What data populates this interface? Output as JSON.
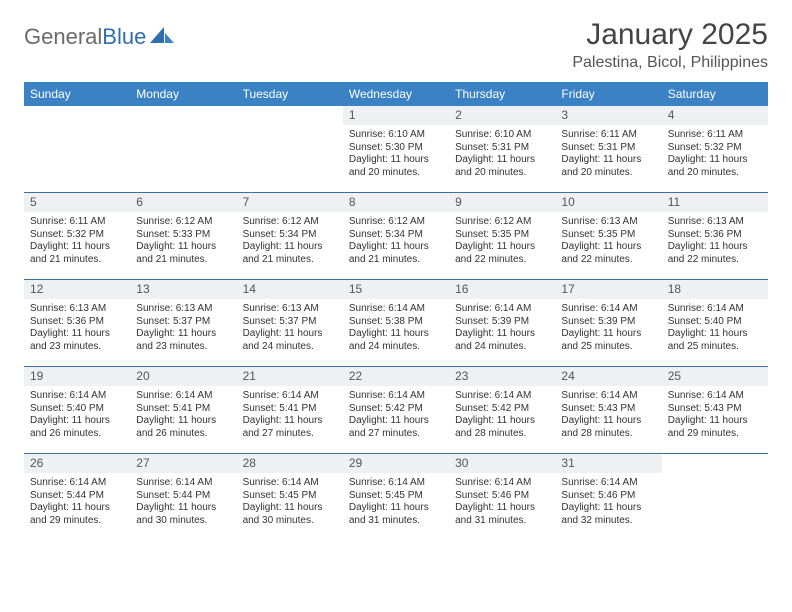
{
  "logo": {
    "text1": "General",
    "text2": "Blue"
  },
  "title": "January 2025",
  "location": "Palestina, Bicol, Philippines",
  "headers": [
    "Sunday",
    "Monday",
    "Tuesday",
    "Wednesday",
    "Thursday",
    "Friday",
    "Saturday"
  ],
  "colors": {
    "header_bg": "#3b82c4",
    "header_text": "#ffffff",
    "daynum_bg": "#eef0f2",
    "week_border": "#3b6fa0",
    "text": "#333333",
    "logo_gray": "#6a6a6a",
    "logo_blue": "#2f6fae"
  },
  "weeks": [
    [
      {
        "n": "",
        "sr": "",
        "ss": "",
        "dl1": "",
        "dl2": ""
      },
      {
        "n": "",
        "sr": "",
        "ss": "",
        "dl1": "",
        "dl2": ""
      },
      {
        "n": "",
        "sr": "",
        "ss": "",
        "dl1": "",
        "dl2": ""
      },
      {
        "n": "1",
        "sr": "Sunrise: 6:10 AM",
        "ss": "Sunset: 5:30 PM",
        "dl1": "Daylight: 11 hours",
        "dl2": "and 20 minutes."
      },
      {
        "n": "2",
        "sr": "Sunrise: 6:10 AM",
        "ss": "Sunset: 5:31 PM",
        "dl1": "Daylight: 11 hours",
        "dl2": "and 20 minutes."
      },
      {
        "n": "3",
        "sr": "Sunrise: 6:11 AM",
        "ss": "Sunset: 5:31 PM",
        "dl1": "Daylight: 11 hours",
        "dl2": "and 20 minutes."
      },
      {
        "n": "4",
        "sr": "Sunrise: 6:11 AM",
        "ss": "Sunset: 5:32 PM",
        "dl1": "Daylight: 11 hours",
        "dl2": "and 20 minutes."
      }
    ],
    [
      {
        "n": "5",
        "sr": "Sunrise: 6:11 AM",
        "ss": "Sunset: 5:32 PM",
        "dl1": "Daylight: 11 hours",
        "dl2": "and 21 minutes."
      },
      {
        "n": "6",
        "sr": "Sunrise: 6:12 AM",
        "ss": "Sunset: 5:33 PM",
        "dl1": "Daylight: 11 hours",
        "dl2": "and 21 minutes."
      },
      {
        "n": "7",
        "sr": "Sunrise: 6:12 AM",
        "ss": "Sunset: 5:34 PM",
        "dl1": "Daylight: 11 hours",
        "dl2": "and 21 minutes."
      },
      {
        "n": "8",
        "sr": "Sunrise: 6:12 AM",
        "ss": "Sunset: 5:34 PM",
        "dl1": "Daylight: 11 hours",
        "dl2": "and 21 minutes."
      },
      {
        "n": "9",
        "sr": "Sunrise: 6:12 AM",
        "ss": "Sunset: 5:35 PM",
        "dl1": "Daylight: 11 hours",
        "dl2": "and 22 minutes."
      },
      {
        "n": "10",
        "sr": "Sunrise: 6:13 AM",
        "ss": "Sunset: 5:35 PM",
        "dl1": "Daylight: 11 hours",
        "dl2": "and 22 minutes."
      },
      {
        "n": "11",
        "sr": "Sunrise: 6:13 AM",
        "ss": "Sunset: 5:36 PM",
        "dl1": "Daylight: 11 hours",
        "dl2": "and 22 minutes."
      }
    ],
    [
      {
        "n": "12",
        "sr": "Sunrise: 6:13 AM",
        "ss": "Sunset: 5:36 PM",
        "dl1": "Daylight: 11 hours",
        "dl2": "and 23 minutes."
      },
      {
        "n": "13",
        "sr": "Sunrise: 6:13 AM",
        "ss": "Sunset: 5:37 PM",
        "dl1": "Daylight: 11 hours",
        "dl2": "and 23 minutes."
      },
      {
        "n": "14",
        "sr": "Sunrise: 6:13 AM",
        "ss": "Sunset: 5:37 PM",
        "dl1": "Daylight: 11 hours",
        "dl2": "and 24 minutes."
      },
      {
        "n": "15",
        "sr": "Sunrise: 6:14 AM",
        "ss": "Sunset: 5:38 PM",
        "dl1": "Daylight: 11 hours",
        "dl2": "and 24 minutes."
      },
      {
        "n": "16",
        "sr": "Sunrise: 6:14 AM",
        "ss": "Sunset: 5:39 PM",
        "dl1": "Daylight: 11 hours",
        "dl2": "and 24 minutes."
      },
      {
        "n": "17",
        "sr": "Sunrise: 6:14 AM",
        "ss": "Sunset: 5:39 PM",
        "dl1": "Daylight: 11 hours",
        "dl2": "and 25 minutes."
      },
      {
        "n": "18",
        "sr": "Sunrise: 6:14 AM",
        "ss": "Sunset: 5:40 PM",
        "dl1": "Daylight: 11 hours",
        "dl2": "and 25 minutes."
      }
    ],
    [
      {
        "n": "19",
        "sr": "Sunrise: 6:14 AM",
        "ss": "Sunset: 5:40 PM",
        "dl1": "Daylight: 11 hours",
        "dl2": "and 26 minutes."
      },
      {
        "n": "20",
        "sr": "Sunrise: 6:14 AM",
        "ss": "Sunset: 5:41 PM",
        "dl1": "Daylight: 11 hours",
        "dl2": "and 26 minutes."
      },
      {
        "n": "21",
        "sr": "Sunrise: 6:14 AM",
        "ss": "Sunset: 5:41 PM",
        "dl1": "Daylight: 11 hours",
        "dl2": "and 27 minutes."
      },
      {
        "n": "22",
        "sr": "Sunrise: 6:14 AM",
        "ss": "Sunset: 5:42 PM",
        "dl1": "Daylight: 11 hours",
        "dl2": "and 27 minutes."
      },
      {
        "n": "23",
        "sr": "Sunrise: 6:14 AM",
        "ss": "Sunset: 5:42 PM",
        "dl1": "Daylight: 11 hours",
        "dl2": "and 28 minutes."
      },
      {
        "n": "24",
        "sr": "Sunrise: 6:14 AM",
        "ss": "Sunset: 5:43 PM",
        "dl1": "Daylight: 11 hours",
        "dl2": "and 28 minutes."
      },
      {
        "n": "25",
        "sr": "Sunrise: 6:14 AM",
        "ss": "Sunset: 5:43 PM",
        "dl1": "Daylight: 11 hours",
        "dl2": "and 29 minutes."
      }
    ],
    [
      {
        "n": "26",
        "sr": "Sunrise: 6:14 AM",
        "ss": "Sunset: 5:44 PM",
        "dl1": "Daylight: 11 hours",
        "dl2": "and 29 minutes."
      },
      {
        "n": "27",
        "sr": "Sunrise: 6:14 AM",
        "ss": "Sunset: 5:44 PM",
        "dl1": "Daylight: 11 hours",
        "dl2": "and 30 minutes."
      },
      {
        "n": "28",
        "sr": "Sunrise: 6:14 AM",
        "ss": "Sunset: 5:45 PM",
        "dl1": "Daylight: 11 hours",
        "dl2": "and 30 minutes."
      },
      {
        "n": "29",
        "sr": "Sunrise: 6:14 AM",
        "ss": "Sunset: 5:45 PM",
        "dl1": "Daylight: 11 hours",
        "dl2": "and 31 minutes."
      },
      {
        "n": "30",
        "sr": "Sunrise: 6:14 AM",
        "ss": "Sunset: 5:46 PM",
        "dl1": "Daylight: 11 hours",
        "dl2": "and 31 minutes."
      },
      {
        "n": "31",
        "sr": "Sunrise: 6:14 AM",
        "ss": "Sunset: 5:46 PM",
        "dl1": "Daylight: 11 hours",
        "dl2": "and 32 minutes."
      },
      {
        "n": "",
        "sr": "",
        "ss": "",
        "dl1": "",
        "dl2": ""
      }
    ]
  ]
}
